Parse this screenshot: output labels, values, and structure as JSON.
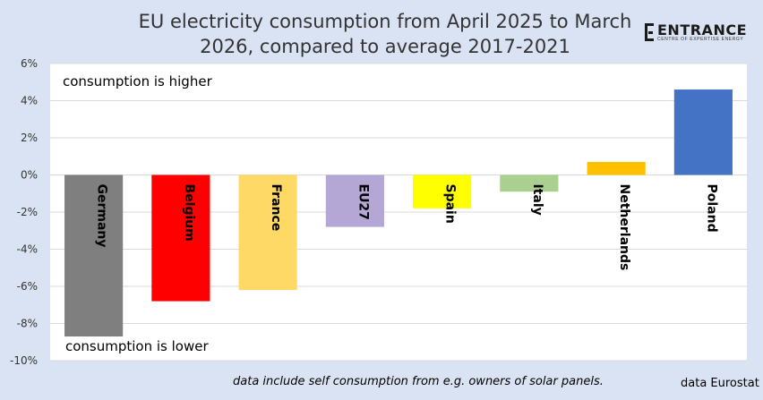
{
  "chart_data": {
    "type": "bar",
    "title": "EU electricity consumption from April 2025 to March 2026, compared to average 2017-2021",
    "categories": [
      "Germany",
      "Belgium",
      "France",
      "EU27",
      "Spain",
      "Italy",
      "Netherlands",
      "Poland"
    ],
    "values": [
      -8.7,
      -6.8,
      -6.2,
      -2.8,
      -1.8,
      -0.9,
      0.7,
      4.6
    ],
    "colors": [
      "#7f7f7f",
      "#ff0000",
      "#ffd966",
      "#b4a7d6",
      "#ffff00",
      "#a9d08e",
      "#ffc000",
      "#4472c4"
    ],
    "ylim": [
      -10,
      6
    ],
    "yticks": [
      6,
      4,
      2,
      0,
      -2,
      -4,
      -6,
      -8,
      -10
    ],
    "ytick_labels": [
      "6%",
      "4%",
      "2%",
      "0%",
      "-2%",
      "-4%",
      "-6%",
      "-8%",
      "-10%"
    ],
    "grid": true,
    "annotations": {
      "higher": "consumption is higher",
      "lower": "consumption is lower"
    }
  },
  "logo": {
    "name": "ENTRANCE",
    "tagline": "CENTRE OF EXPERTISE ENERGY"
  },
  "footnote": "data include self consumption from e.g. owners of solar panels.",
  "source": "data Eurostat"
}
